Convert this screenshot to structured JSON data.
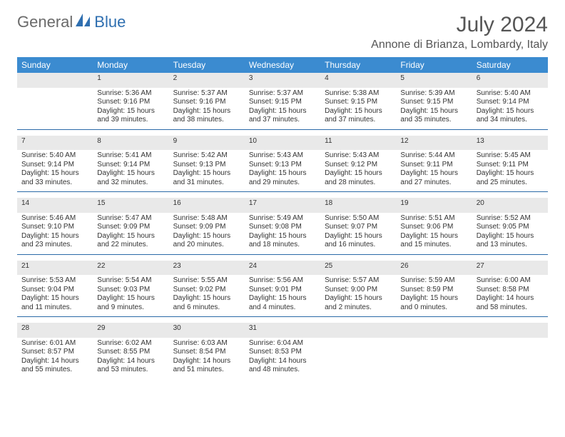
{
  "logo": {
    "text1": "General",
    "text2": "Blue"
  },
  "title": "July 2024",
  "location": "Annone di Brianza, Lombardy, Italy",
  "colors": {
    "header_bg": "#3b8bd0",
    "header_text": "#ffffff",
    "daynum_bg": "#e9e9e9",
    "border": "#2b6aa8",
    "body_text": "#333333",
    "logo_gray": "#6a6a6a",
    "logo_blue": "#2f6fb0"
  },
  "weekdays": [
    "Sunday",
    "Monday",
    "Tuesday",
    "Wednesday",
    "Thursday",
    "Friday",
    "Saturday"
  ],
  "weeks": [
    {
      "nums": [
        "",
        "1",
        "2",
        "3",
        "4",
        "5",
        "6"
      ],
      "cells": [
        [],
        [
          "Sunrise: 5:36 AM",
          "Sunset: 9:16 PM",
          "Daylight: 15 hours",
          "and 39 minutes."
        ],
        [
          "Sunrise: 5:37 AM",
          "Sunset: 9:16 PM",
          "Daylight: 15 hours",
          "and 38 minutes."
        ],
        [
          "Sunrise: 5:37 AM",
          "Sunset: 9:15 PM",
          "Daylight: 15 hours",
          "and 37 minutes."
        ],
        [
          "Sunrise: 5:38 AM",
          "Sunset: 9:15 PM",
          "Daylight: 15 hours",
          "and 37 minutes."
        ],
        [
          "Sunrise: 5:39 AM",
          "Sunset: 9:15 PM",
          "Daylight: 15 hours",
          "and 35 minutes."
        ],
        [
          "Sunrise: 5:40 AM",
          "Sunset: 9:14 PM",
          "Daylight: 15 hours",
          "and 34 minutes."
        ]
      ]
    },
    {
      "nums": [
        "7",
        "8",
        "9",
        "10",
        "11",
        "12",
        "13"
      ],
      "cells": [
        [
          "Sunrise: 5:40 AM",
          "Sunset: 9:14 PM",
          "Daylight: 15 hours",
          "and 33 minutes."
        ],
        [
          "Sunrise: 5:41 AM",
          "Sunset: 9:14 PM",
          "Daylight: 15 hours",
          "and 32 minutes."
        ],
        [
          "Sunrise: 5:42 AM",
          "Sunset: 9:13 PM",
          "Daylight: 15 hours",
          "and 31 minutes."
        ],
        [
          "Sunrise: 5:43 AM",
          "Sunset: 9:13 PM",
          "Daylight: 15 hours",
          "and 29 minutes."
        ],
        [
          "Sunrise: 5:43 AM",
          "Sunset: 9:12 PM",
          "Daylight: 15 hours",
          "and 28 minutes."
        ],
        [
          "Sunrise: 5:44 AM",
          "Sunset: 9:11 PM",
          "Daylight: 15 hours",
          "and 27 minutes."
        ],
        [
          "Sunrise: 5:45 AM",
          "Sunset: 9:11 PM",
          "Daylight: 15 hours",
          "and 25 minutes."
        ]
      ]
    },
    {
      "nums": [
        "14",
        "15",
        "16",
        "17",
        "18",
        "19",
        "20"
      ],
      "cells": [
        [
          "Sunrise: 5:46 AM",
          "Sunset: 9:10 PM",
          "Daylight: 15 hours",
          "and 23 minutes."
        ],
        [
          "Sunrise: 5:47 AM",
          "Sunset: 9:09 PM",
          "Daylight: 15 hours",
          "and 22 minutes."
        ],
        [
          "Sunrise: 5:48 AM",
          "Sunset: 9:09 PM",
          "Daylight: 15 hours",
          "and 20 minutes."
        ],
        [
          "Sunrise: 5:49 AM",
          "Sunset: 9:08 PM",
          "Daylight: 15 hours",
          "and 18 minutes."
        ],
        [
          "Sunrise: 5:50 AM",
          "Sunset: 9:07 PM",
          "Daylight: 15 hours",
          "and 16 minutes."
        ],
        [
          "Sunrise: 5:51 AM",
          "Sunset: 9:06 PM",
          "Daylight: 15 hours",
          "and 15 minutes."
        ],
        [
          "Sunrise: 5:52 AM",
          "Sunset: 9:05 PM",
          "Daylight: 15 hours",
          "and 13 minutes."
        ]
      ]
    },
    {
      "nums": [
        "21",
        "22",
        "23",
        "24",
        "25",
        "26",
        "27"
      ],
      "cells": [
        [
          "Sunrise: 5:53 AM",
          "Sunset: 9:04 PM",
          "Daylight: 15 hours",
          "and 11 minutes."
        ],
        [
          "Sunrise: 5:54 AM",
          "Sunset: 9:03 PM",
          "Daylight: 15 hours",
          "and 9 minutes."
        ],
        [
          "Sunrise: 5:55 AM",
          "Sunset: 9:02 PM",
          "Daylight: 15 hours",
          "and 6 minutes."
        ],
        [
          "Sunrise: 5:56 AM",
          "Sunset: 9:01 PM",
          "Daylight: 15 hours",
          "and 4 minutes."
        ],
        [
          "Sunrise: 5:57 AM",
          "Sunset: 9:00 PM",
          "Daylight: 15 hours",
          "and 2 minutes."
        ],
        [
          "Sunrise: 5:59 AM",
          "Sunset: 8:59 PM",
          "Daylight: 15 hours",
          "and 0 minutes."
        ],
        [
          "Sunrise: 6:00 AM",
          "Sunset: 8:58 PM",
          "Daylight: 14 hours",
          "and 58 minutes."
        ]
      ]
    },
    {
      "nums": [
        "28",
        "29",
        "30",
        "31",
        "",
        "",
        ""
      ],
      "cells": [
        [
          "Sunrise: 6:01 AM",
          "Sunset: 8:57 PM",
          "Daylight: 14 hours",
          "and 55 minutes."
        ],
        [
          "Sunrise: 6:02 AM",
          "Sunset: 8:55 PM",
          "Daylight: 14 hours",
          "and 53 minutes."
        ],
        [
          "Sunrise: 6:03 AM",
          "Sunset: 8:54 PM",
          "Daylight: 14 hours",
          "and 51 minutes."
        ],
        [
          "Sunrise: 6:04 AM",
          "Sunset: 8:53 PM",
          "Daylight: 14 hours",
          "and 48 minutes."
        ],
        [],
        [],
        []
      ]
    }
  ]
}
